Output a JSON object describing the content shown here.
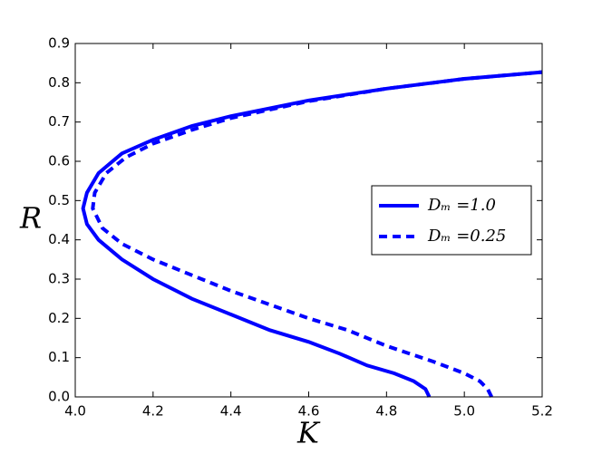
{
  "chart_data": {
    "type": "line",
    "xlabel": "K",
    "ylabel": "R",
    "xlim": [
      4.0,
      5.2
    ],
    "ylim": [
      0.0,
      0.9
    ],
    "xticks": [
      {
        "value": 4.0,
        "label": "4.0"
      },
      4.2,
      4.4,
      4.6,
      4.8,
      {
        "value": 5.0,
        "label": "5.0"
      },
      5.2
    ],
    "yticks": [
      {
        "value": 0.0,
        "label": "0.0"
      },
      0.1,
      0.2,
      0.3,
      0.4,
      0.5,
      0.6,
      0.7,
      0.8,
      0.9
    ],
    "legend": "right",
    "series": [
      {
        "name": "Dₘ =1.0",
        "color": "#0000ff",
        "linestyle": "solid",
        "x": [
          4.91,
          4.9,
          4.87,
          4.82,
          4.75,
          4.68,
          4.6,
          4.5,
          4.4,
          4.3,
          4.2,
          4.12,
          4.06,
          4.03,
          4.02,
          4.03,
          4.06,
          4.12,
          4.2,
          4.3,
          4.4,
          4.6,
          4.8,
          5.0,
          5.2
        ],
        "values": [
          0.0,
          0.02,
          0.04,
          0.06,
          0.08,
          0.11,
          0.14,
          0.17,
          0.21,
          0.25,
          0.3,
          0.35,
          0.4,
          0.44,
          0.48,
          0.52,
          0.57,
          0.62,
          0.655,
          0.69,
          0.715,
          0.755,
          0.785,
          0.81,
          0.827
        ]
      },
      {
        "name": "Dₘ =0.25",
        "color": "#0000ff",
        "linestyle": "dashed",
        "x": [
          5.07,
          5.06,
          5.04,
          5.0,
          4.92,
          4.8,
          4.7,
          4.6,
          4.5,
          4.4,
          4.3,
          4.2,
          4.12,
          4.07,
          4.045,
          4.05,
          4.08,
          4.13,
          4.2,
          4.3,
          4.4,
          4.6,
          4.8,
          5.0,
          5.2
        ],
        "values": [
          0.0,
          0.02,
          0.04,
          0.06,
          0.09,
          0.13,
          0.17,
          0.2,
          0.235,
          0.27,
          0.31,
          0.35,
          0.39,
          0.43,
          0.48,
          0.52,
          0.57,
          0.61,
          0.645,
          0.68,
          0.71,
          0.753,
          0.785,
          0.81,
          0.827
        ]
      }
    ]
  }
}
